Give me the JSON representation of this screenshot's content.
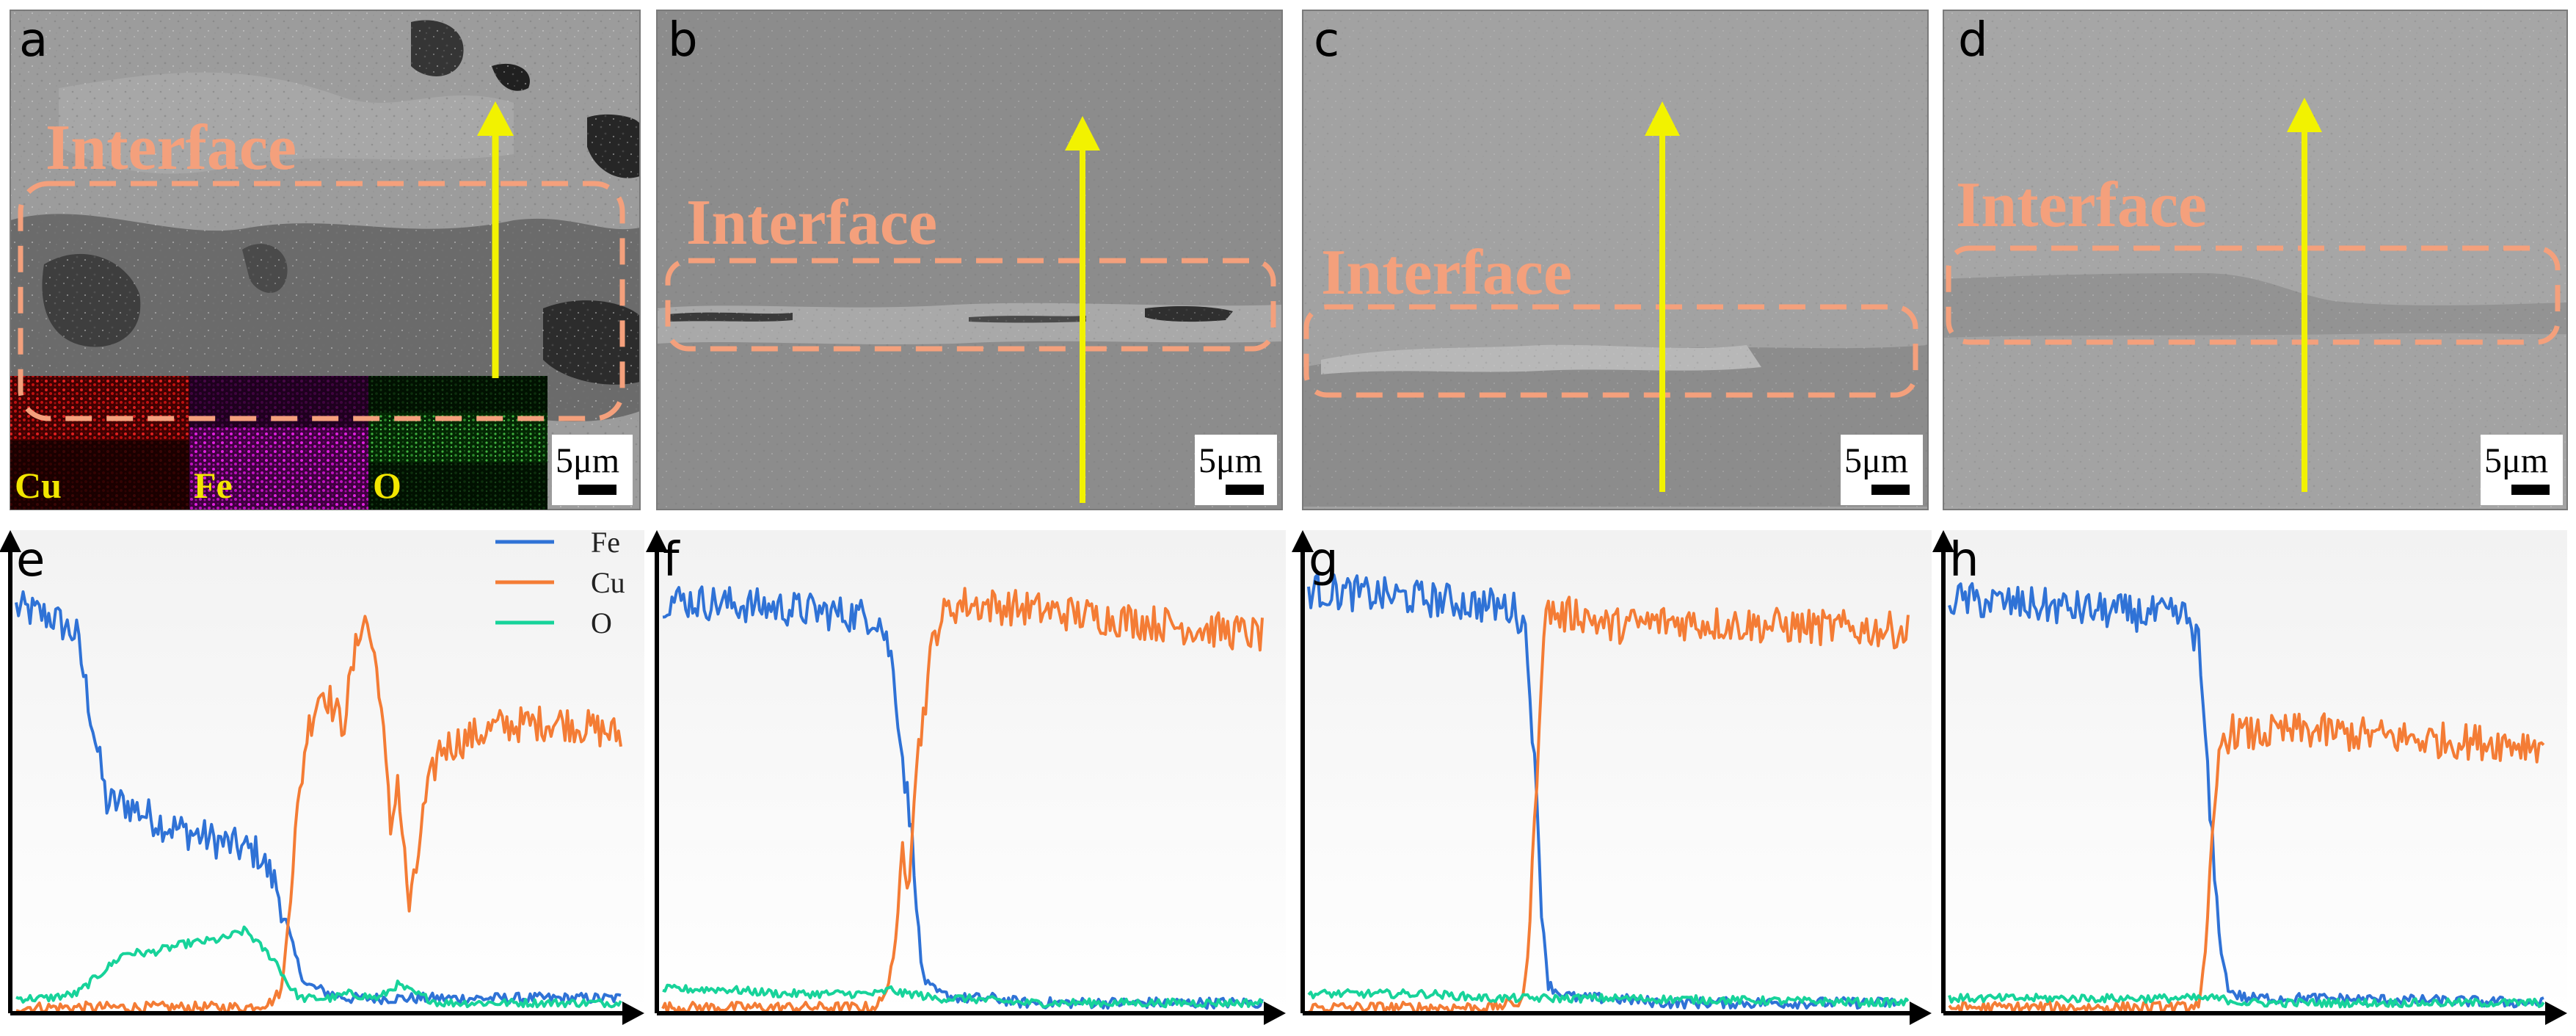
{
  "figure": {
    "sem_panels": [
      {
        "id": "a",
        "letter": "a",
        "interface_label": "Interface",
        "scale_label": "5μm"
      },
      {
        "id": "b",
        "letter": "b",
        "interface_label": "Interface",
        "scale_label": "5μm"
      },
      {
        "id": "c",
        "letter": "c",
        "interface_label": "Interface",
        "scale_label": "5μm"
      },
      {
        "id": "d",
        "letter": "d",
        "interface_label": "Interface",
        "scale_label": "5μm"
      }
    ],
    "eds_maps": [
      {
        "element": "Cu",
        "color": "#D01818"
      },
      {
        "element": "Fe",
        "color": "#D01AD0"
      },
      {
        "element": "O",
        "color": "#3FB23F"
      }
    ],
    "colors": {
      "interface": "#F4A07C",
      "arrow": "#F2F200",
      "fe": "#2F72D6",
      "cu": "#F47C35",
      "o": "#17D39A"
    }
  },
  "chart_data": [
    {
      "type": "line",
      "panel": "e",
      "title": "",
      "xlabel": "",
      "ylabel": "",
      "xlim": [
        0,
        100
      ],
      "ylim": [
        0,
        100
      ],
      "legend": {
        "placement": "top-right",
        "entries": [
          "Fe",
          "Cu",
          "O"
        ]
      },
      "series": [
        {
          "name": "Fe",
          "x": [
            0,
            6,
            10,
            15,
            18,
            25,
            40,
            43,
            45,
            46,
            47,
            48,
            50,
            52,
            55,
            60,
            65,
            70,
            75,
            100
          ],
          "y": [
            88,
            86,
            82,
            45,
            45,
            40,
            34,
            27,
            17,
            12,
            8,
            5,
            4,
            3,
            2,
            2,
            2,
            2,
            2,
            2
          ]
        },
        {
          "name": "Cu",
          "x": [
            0,
            38,
            42,
            44,
            46,
            48,
            50,
            51,
            54,
            57,
            58,
            60,
            62,
            63,
            64,
            65,
            66,
            67,
            68,
            70,
            72,
            80,
            90,
            100
          ],
          "y": [
            0,
            0,
            1,
            4,
            36,
            60,
            69,
            70,
            62,
            85,
            85,
            72,
            38,
            52,
            36,
            22,
            28,
            40,
            47,
            57,
            58,
            62,
            63,
            60
          ]
        },
        {
          "name": "O",
          "x": [
            0,
            5,
            10,
            18,
            22,
            28,
            34,
            38,
            40,
            43,
            45,
            47,
            48,
            52,
            55,
            60,
            63,
            66,
            70,
            75,
            100
          ],
          "y": [
            2,
            2,
            3,
            12,
            12,
            14,
            15,
            17,
            14,
            10,
            5,
            2,
            2,
            2,
            3,
            2,
            5,
            3,
            1,
            1,
            1
          ]
        }
      ]
    },
    {
      "type": "line",
      "panel": "f",
      "title": "",
      "xlabel": "",
      "ylabel": "",
      "xlim": [
        0,
        100
      ],
      "ylim": [
        0,
        100
      ],
      "legend": null,
      "series": [
        {
          "name": "Fe",
          "x": [
            0,
            20,
            36,
            38,
            39,
            40,
            41,
            42,
            43,
            44,
            46,
            50,
            55,
            60,
            70,
            100
          ],
          "y": [
            90,
            88,
            86,
            78,
            68,
            55,
            44,
            32,
            10,
            5,
            3,
            2,
            2,
            1,
            1,
            1
          ]
        },
        {
          "name": "Cu",
          "x": [
            0,
            35,
            37,
            39,
            40,
            41,
            42,
            43,
            44,
            45,
            46,
            48,
            50,
            60,
            80,
            100
          ],
          "y": [
            0,
            0,
            2,
            15,
            36,
            28,
            50,
            60,
            70,
            80,
            85,
            88,
            89,
            88,
            85,
            82
          ]
        },
        {
          "name": "O",
          "x": [
            0,
            10,
            20,
            30,
            36,
            38,
            40,
            42,
            45,
            50,
            60,
            100
          ],
          "y": [
            4,
            4,
            3,
            3,
            3,
            4,
            3,
            3,
            2,
            2,
            1,
            1
          ]
        }
      ]
    },
    {
      "type": "line",
      "panel": "g",
      "title": "",
      "xlabel": "",
      "ylabel": "",
      "xlim": [
        0,
        100
      ],
      "ylim": [
        0,
        100
      ],
      "legend": null,
      "series": [
        {
          "name": "Fe",
          "x": [
            0,
            20,
            34,
            36,
            37,
            38,
            39,
            40,
            42,
            45,
            50,
            60,
            100
          ],
          "y": [
            92,
            90,
            88,
            85,
            70,
            45,
            20,
            5,
            3,
            2,
            2,
            1,
            1
          ]
        },
        {
          "name": "Cu",
          "x": [
            0,
            30,
            35,
            36,
            37,
            38,
            39,
            40,
            42,
            45,
            50,
            60,
            80,
            100
          ],
          "y": [
            0,
            0,
            1,
            3,
            20,
            50,
            80,
            88,
            86,
            87,
            84,
            85,
            84,
            83
          ]
        },
        {
          "name": "O",
          "x": [
            0,
            10,
            20,
            30,
            36,
            40,
            45,
            50,
            100
          ],
          "y": [
            3,
            3,
            3,
            2,
            2,
            2,
            2,
            2,
            1
          ]
        }
      ]
    },
    {
      "type": "line",
      "panel": "h",
      "title": "",
      "xlabel": "",
      "ylabel": "",
      "xlim": [
        0,
        100
      ],
      "ylim": [
        0,
        100
      ],
      "legend": null,
      "series": [
        {
          "name": "Fe",
          "x": [
            0,
            20,
            40,
            42,
            43,
            44,
            45,
            46,
            47,
            48,
            50,
            60,
            100
          ],
          "y": [
            90,
            88,
            86,
            80,
            60,
            40,
            22,
            10,
            4,
            3,
            2,
            2,
            1
          ]
        },
        {
          "name": "Cu",
          "x": [
            0,
            40,
            42,
            43,
            44,
            45,
            46,
            47,
            48,
            50,
            60,
            80,
            100
          ],
          "y": [
            0,
            0,
            1,
            10,
            30,
            50,
            60,
            60,
            61,
            60,
            61,
            59,
            58
          ]
        },
        {
          "name": "O",
          "x": [
            0,
            10,
            20,
            30,
            40,
            45,
            50,
            60,
            100
          ],
          "y": [
            2,
            2,
            2,
            2,
            2,
            2,
            1,
            1,
            1
          ]
        }
      ]
    }
  ]
}
